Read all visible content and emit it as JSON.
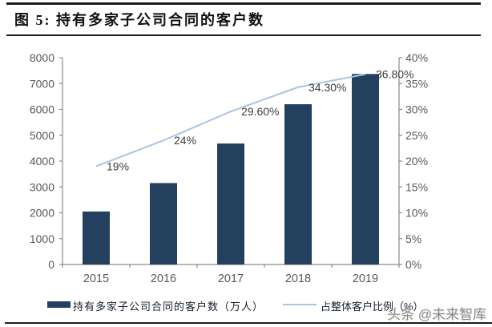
{
  "figure": {
    "title": "图 5: 持有多家子公司合同的客户数",
    "watermark_brand": "头条",
    "watermark_handle": "@未来智库"
  },
  "chart_data": {
    "type": "bar",
    "subtype": "bar-line-combo",
    "title": "持有多家子公司合同的客户数",
    "categories": [
      "2015",
      "2016",
      "2017",
      "2018",
      "2019"
    ],
    "series": [
      {
        "name": "持有多家子公司合同的客户数（万人）",
        "chart": "bar",
        "axis": "left",
        "values": [
          2050,
          3150,
          4680,
          6200,
          7370
        ],
        "color": "#24405F"
      },
      {
        "name": "占整体客户比例（%）",
        "chart": "line",
        "axis": "right",
        "values": [
          19,
          24,
          29.6,
          34.3,
          36.8
        ],
        "labels": [
          "19%",
          "24%",
          "29.60%",
          "34.30%",
          "36.80%"
        ],
        "color": "#A9C4E3"
      }
    ],
    "left_axis": {
      "min": 0,
      "max": 8000,
      "step": 1000,
      "tick_labels": [
        "0",
        "1000",
        "2000",
        "3000",
        "4000",
        "5000",
        "6000",
        "7000",
        "8000"
      ]
    },
    "right_axis": {
      "min": 0,
      "max": 40,
      "step": 5,
      "tick_labels": [
        "0%",
        "5%",
        "10%",
        "15%",
        "20%",
        "25%",
        "30%",
        "35%",
        "40%"
      ]
    },
    "gridlines": false,
    "legend_position": "bottom"
  }
}
